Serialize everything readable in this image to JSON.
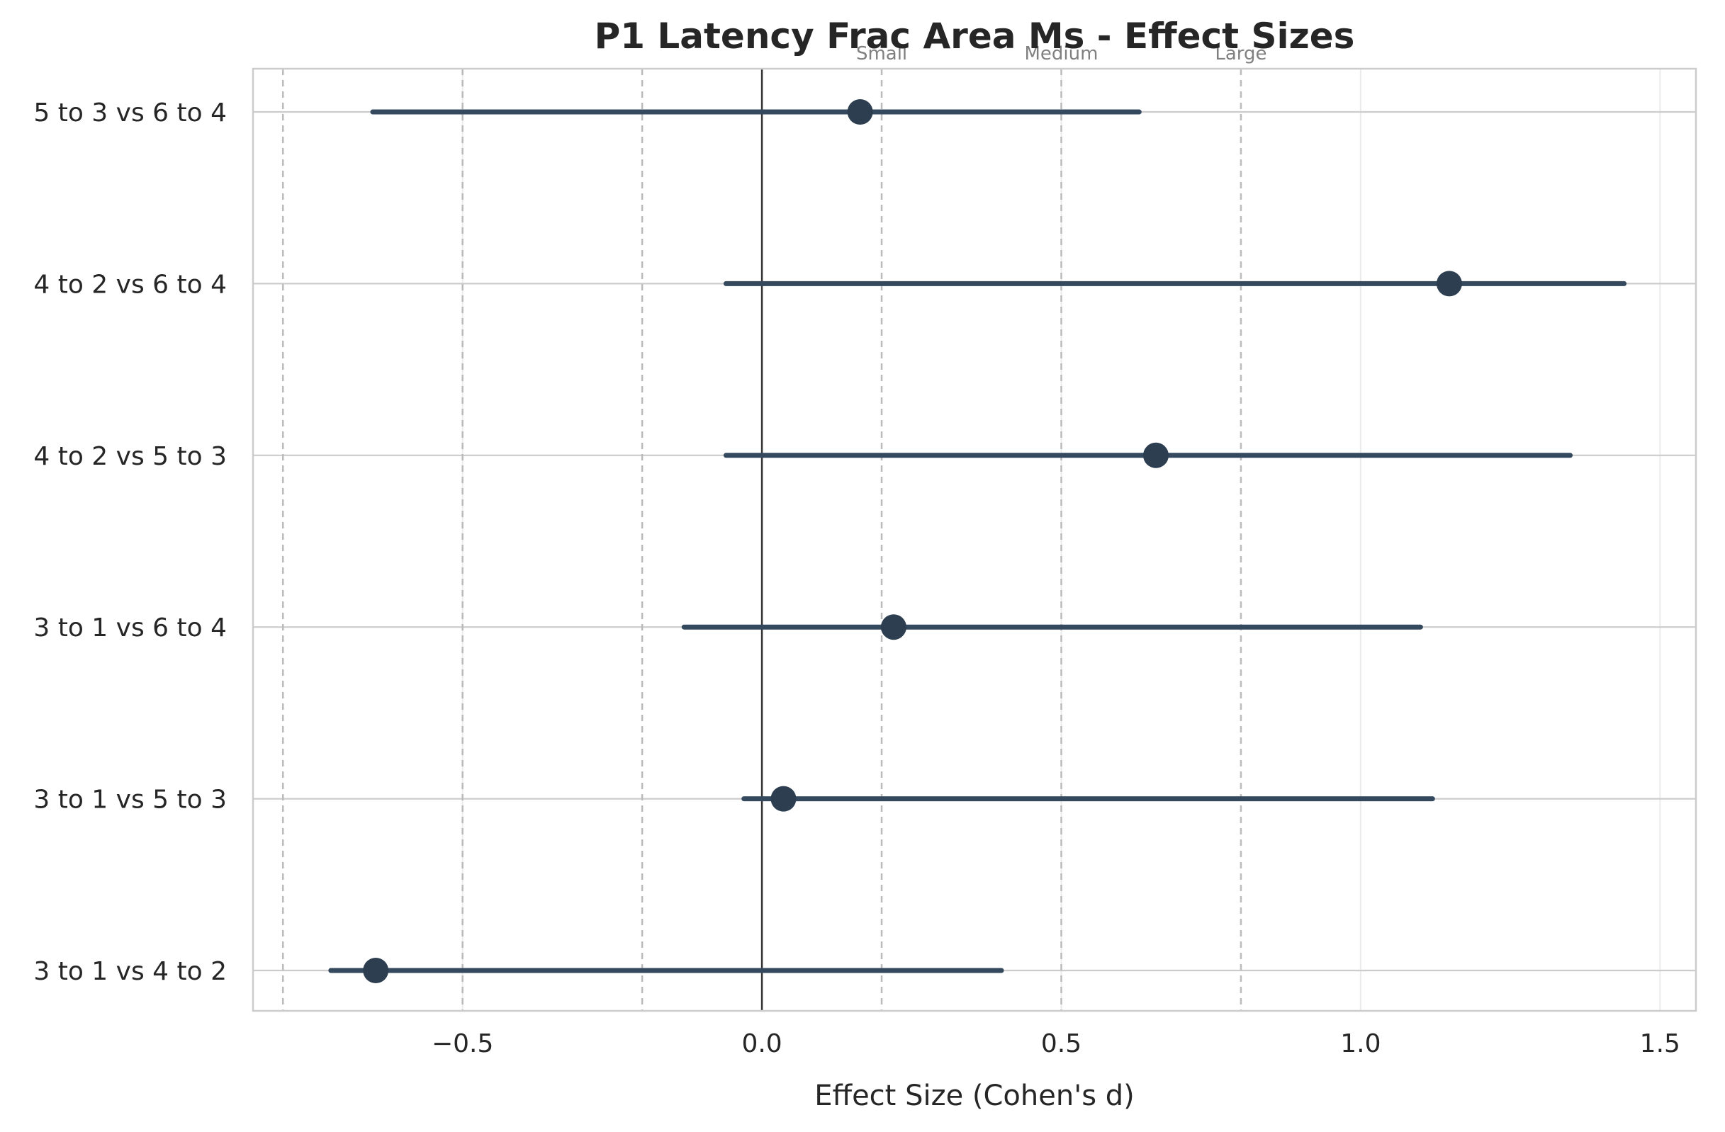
{
  "chart_data": {
    "type": "forest",
    "title": "P1 Latency Frac Area Ms - Effect Sizes",
    "xlabel": "Effect Size (Cohen's d)",
    "ylabel": "",
    "xlim": [
      -0.85,
      1.56
    ],
    "xticks": [
      -0.5,
      0.0,
      0.5,
      1.0,
      1.5
    ],
    "xtick_labels": [
      "−0.5",
      "0.0",
      "0.5",
      "1.0",
      "1.5"
    ],
    "grid": true,
    "zero_line": 0.0,
    "reference_lines": [
      {
        "value": -0.8,
        "label": ""
      },
      {
        "value": -0.5,
        "label": ""
      },
      {
        "value": -0.2,
        "label": ""
      },
      {
        "value": 0.2,
        "label": "Small"
      },
      {
        "value": 0.5,
        "label": "Medium"
      },
      {
        "value": 0.8,
        "label": "Large"
      }
    ],
    "comparisons": [
      {
        "label": "5 to 3 vs 6 to 4",
        "d": 0.164,
        "ci": [
          -0.65,
          0.63
        ]
      },
      {
        "label": "4 to 2 vs 6 to 4",
        "d": 1.148,
        "ci": [
          -0.06,
          1.44
        ]
      },
      {
        "label": "4 to 2 vs 5 to 3",
        "d": 0.658,
        "ci": [
          -0.06,
          1.35
        ]
      },
      {
        "label": "3 to 1 vs 6 to 4",
        "d": 0.22,
        "ci": [
          -0.13,
          1.1
        ]
      },
      {
        "label": "3 to 1 vs 5 to 3",
        "d": 0.036,
        "ci": [
          -0.03,
          1.12
        ]
      },
      {
        "label": "3 to 1 vs 4 to 2",
        "d": -0.645,
        "ci": [
          -0.72,
          0.4
        ]
      }
    ],
    "colors": {
      "line": "#34495e",
      "point": "#2c3e50",
      "zero_line": "#333333",
      "reference": "#bbbbbb",
      "reference_text": "#808080",
      "grid": "#cccccc",
      "text": "#262626"
    }
  }
}
